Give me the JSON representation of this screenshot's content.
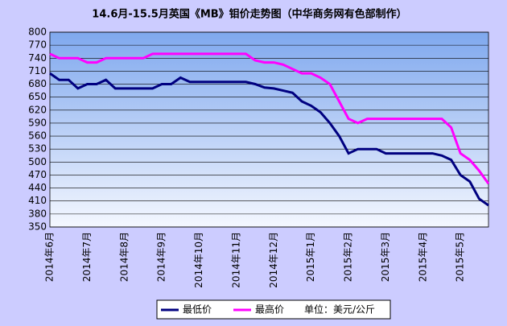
{
  "chart_data": {
    "type": "line",
    "title": "14.6月-15.5月英国《MB》钼价走势图（中华商务网有色部制作）",
    "annotation": "单位：美元/公斤",
    "categories": [
      "2014年6月",
      null,
      null,
      null,
      "2014年7月",
      null,
      null,
      null,
      "2014年8月",
      null,
      null,
      null,
      "2014年9月",
      null,
      null,
      null,
      "2014年10月",
      null,
      null,
      null,
      "2014年11月",
      null,
      null,
      null,
      "2014年12月",
      null,
      null,
      null,
      "2015年1月",
      null,
      null,
      null,
      "2015年2月",
      null,
      null,
      null,
      "2015年3月",
      null,
      null,
      null,
      "2015年4月",
      null,
      null,
      null,
      "2015年5月",
      null,
      null,
      null
    ],
    "series": [
      {
        "name": "最低价",
        "color": "#000080",
        "values": [
          705,
          690,
          690,
          670,
          680,
          680,
          690,
          670,
          670,
          670,
          670,
          670,
          680,
          680,
          695,
          685,
          685,
          685,
          685,
          685,
          685,
          685,
          680,
          672,
          670,
          665,
          660,
          640,
          630,
          615,
          590,
          560,
          520,
          530,
          530,
          530,
          520,
          520,
          520,
          520,
          520,
          520,
          515,
          505,
          470,
          455,
          415,
          400
        ]
      },
      {
        "name": "最高价",
        "color": "#ff00ff",
        "values": [
          750,
          740,
          740,
          740,
          730,
          730,
          740,
          740,
          740,
          740,
          740,
          750,
          750,
          750,
          750,
          750,
          750,
          750,
          750,
          750,
          750,
          750,
          735,
          730,
          730,
          725,
          715,
          705,
          705,
          695,
          680,
          640,
          600,
          590,
          600,
          600,
          600,
          600,
          600,
          600,
          600,
          600,
          600,
          580,
          520,
          505,
          480,
          450
        ]
      }
    ],
    "ylim": [
      350,
      800
    ],
    "yticks": [
      350,
      380,
      410,
      440,
      470,
      500,
      530,
      560,
      590,
      620,
      650,
      680,
      710,
      740,
      770,
      800
    ],
    "grid": true
  }
}
